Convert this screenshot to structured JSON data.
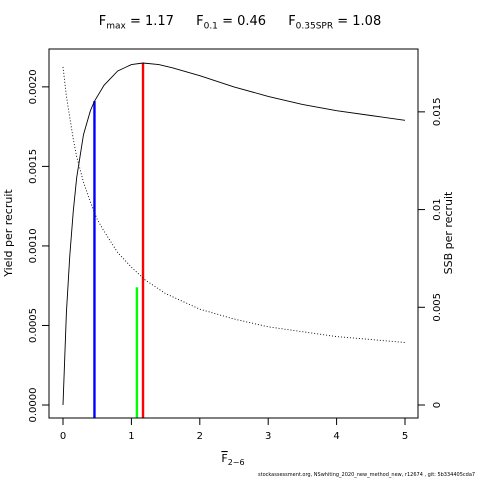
{
  "title": {
    "fmax": {
      "label": "F",
      "sub": "max",
      "value": "= 1.17"
    },
    "f01": {
      "label": "F",
      "sub": "0.1",
      "value": "= 0.46"
    },
    "f035": {
      "label": "F",
      "sub": "0.35SPR",
      "value": "= 1.08"
    }
  },
  "footnote": "stockassessment.org, NSwhiting_2020_new_method_new, r12674 , git: 5b334405cda7",
  "chart_data": {
    "type": "line",
    "xlabel": {
      "base": "F",
      "sub": "2−6"
    },
    "ylabel_left": "Yield per recruit",
    "ylabel_right": "SSB per recruit",
    "xlim": [
      0,
      5
    ],
    "ylim_left": [
      0,
      0.00215
    ],
    "ylim_right": [
      0,
      0.0175
    ],
    "x_ticks": [
      0,
      1,
      2,
      3,
      4,
      5
    ],
    "y_left_ticks": [
      "0.0000",
      "0.0005",
      "0.0010",
      "0.0015",
      "0.0020"
    ],
    "y_right_ticks": [
      "0",
      "0.005",
      "0.01",
      "0.015"
    ],
    "y_right_tick_values": [
      0,
      0.005,
      0.01,
      0.015
    ],
    "grid": false,
    "series": [
      {
        "style": "solid",
        "axis": "left",
        "x": [
          0,
          0.05,
          0.1,
          0.15,
          0.2,
          0.3,
          0.4,
          0.46,
          0.6,
          0.8,
          1.0,
          1.17,
          1.4,
          1.6,
          2.0,
          2.5,
          3.0,
          3.5,
          4.0,
          4.5,
          5.0
        ],
        "y": [
          0,
          0.00058,
          0.00094,
          0.00122,
          0.00143,
          0.0017,
          0.00185,
          0.00191,
          0.00201,
          0.0021,
          0.00214,
          0.00215,
          0.00214,
          0.00212,
          0.00207,
          0.002,
          0.00194,
          0.00189,
          0.00185,
          0.00182,
          0.00179
        ]
      },
      {
        "style": "dotted",
        "axis": "right",
        "x": [
          0,
          0.05,
          0.1,
          0.15,
          0.2,
          0.3,
          0.4,
          0.5,
          0.6,
          0.8,
          1.0,
          1.2,
          1.5,
          2.0,
          2.5,
          3.0,
          3.5,
          4.0,
          4.5,
          5.0
        ],
        "y": [
          0.0173,
          0.0158,
          0.0147,
          0.0136,
          0.0127,
          0.0114,
          0.0104,
          0.0095,
          0.0089,
          0.0078,
          0.00705,
          0.0064,
          0.0057,
          0.0049,
          0.0044,
          0.004,
          0.00375,
          0.0035,
          0.00335,
          0.0032
        ]
      }
    ],
    "reference_lines": [
      {
        "name": "F0.1",
        "x": 0.46,
        "y_top": 0.00191,
        "color": "#0000ff"
      },
      {
        "name": "F0.35SPR",
        "x": 1.08,
        "y_top": 0.00074,
        "color": "#00ff00"
      },
      {
        "name": "Fmax",
        "x": 1.17,
        "y_top": 0.00215,
        "color": "#ff0000"
      }
    ]
  }
}
